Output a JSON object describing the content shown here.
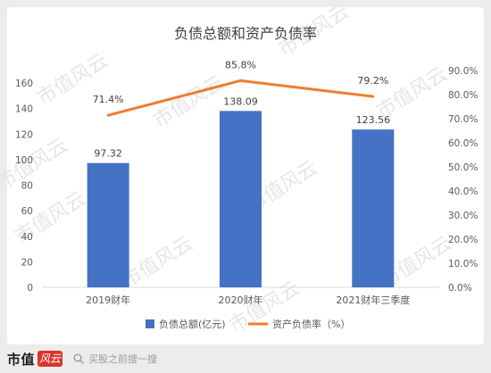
{
  "chart_data": {
    "type": "bar",
    "title": "负债总额和资产负债率",
    "categories": [
      "2019财年",
      "2020财年",
      "2021财年三季度"
    ],
    "series": [
      {
        "name": "负债总额(亿元)",
        "type": "bar",
        "axis": "left",
        "values": [
          97.32,
          138.09,
          123.56
        ],
        "labels": [
          "97.32",
          "138.09",
          "123.56"
        ],
        "color": "#4472c4"
      },
      {
        "name": "资产负债率（%）",
        "type": "line",
        "axis": "right",
        "values": [
          71.4,
          85.8,
          79.2
        ],
        "labels": [
          "71.4%",
          "85.8%",
          "79.2%"
        ],
        "color": "#ed7d31"
      }
    ],
    "ylim": [
      0,
      160
    ],
    "yticks": [
      "0",
      "20",
      "40",
      "60",
      "80",
      "100",
      "120",
      "140",
      "160"
    ],
    "y2lim": [
      0,
      90
    ],
    "y2ticks": [
      "0.0%",
      "10.0%",
      "20.0%",
      "30.0%",
      "40.0%",
      "50.0%",
      "60.0%",
      "70.0%",
      "80.0%",
      "90.0%"
    ],
    "grid": false,
    "legend_position": "bottom"
  },
  "watermark": "市值风云",
  "footer": {
    "brand": "市值",
    "brand_mark": "风云",
    "search_placeholder": "买股之前搜一搜"
  },
  "colors": {
    "bar": "#4472c4",
    "line": "#ed7d31",
    "brand_red": "#d9362b"
  }
}
